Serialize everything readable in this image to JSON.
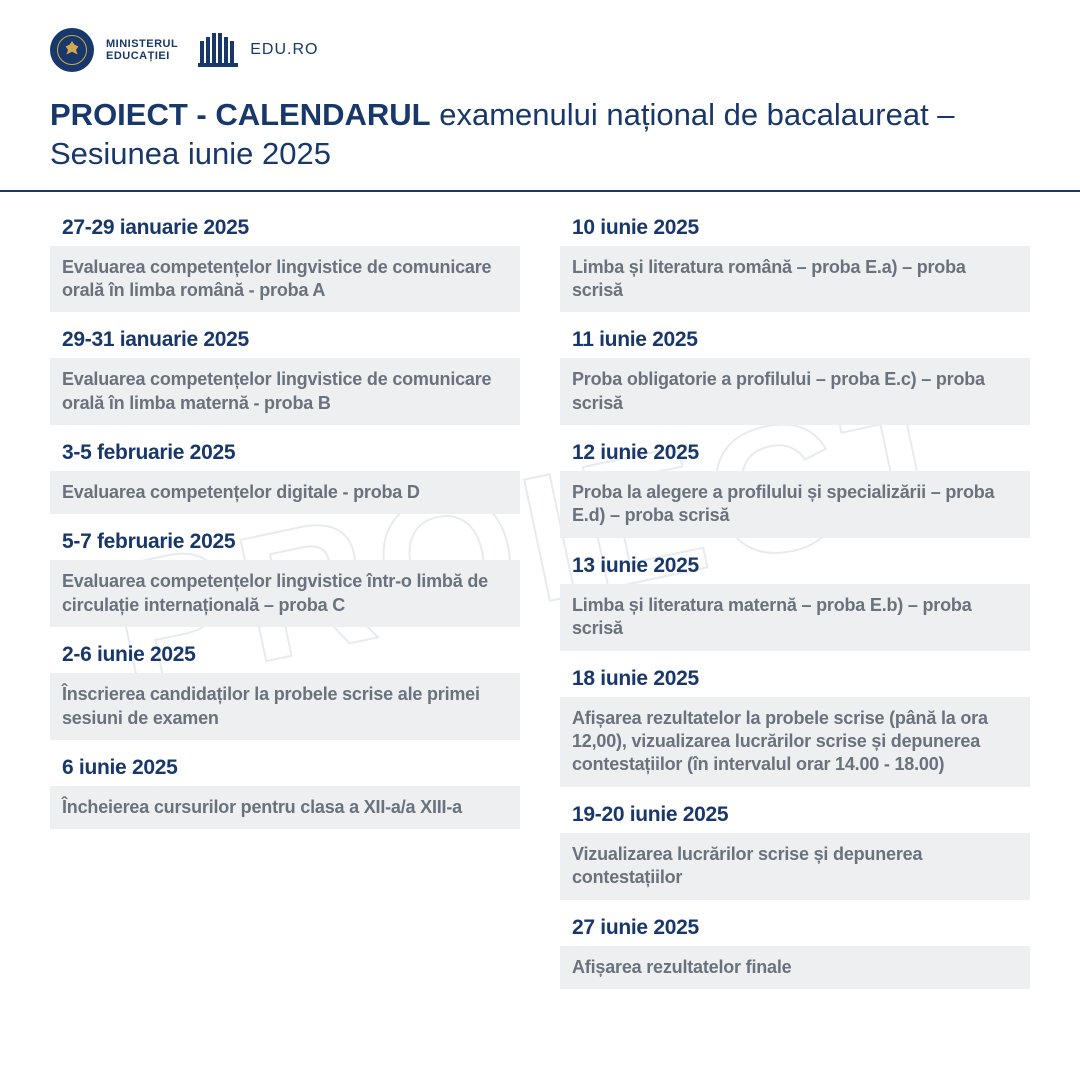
{
  "watermark": "PROIECT",
  "header": {
    "ministry_line1": "MINISTERUL",
    "ministry_line2": "EDUCAȚIEI",
    "site": "EDU.RO"
  },
  "title": {
    "bold": "PROIECT - CALENDARUL",
    "rest": " examenului național de bacalaureat – Sesiunea iunie 2025"
  },
  "colors": {
    "primary": "#18376a",
    "desc_bg": "#eeeff1",
    "desc_text": "#69727d",
    "seal_gold": "#d4a84a"
  },
  "left": [
    {
      "date": "27-29 ianuarie 2025",
      "desc": "Evaluarea competențelor lingvistice de comunicare orală în limba română - proba A"
    },
    {
      "date": "29-31 ianuarie 2025",
      "desc": "Evaluarea competențelor lingvistice de comunicare orală în limba maternă - proba B"
    },
    {
      "date": "3-5 februarie 2025",
      "desc": "Evaluarea competențelor digitale - proba D"
    },
    {
      "date": "5-7 februarie 2025",
      "desc": "Evaluarea competențelor lingvistice într-o limbă de circulație internațională – proba C"
    },
    {
      "date": "2-6 iunie 2025",
      "desc": "Înscrierea candidaților la probele scrise ale primei sesiuni de examen"
    },
    {
      "date": "6 iunie 2025",
      "desc": "Încheierea cursurilor pentru clasa a XII-a/a XIII-a"
    }
  ],
  "right": [
    {
      "date": "10 iunie 2025",
      "desc": "Limba și literatura română – proba E.a) – proba scrisă"
    },
    {
      "date": "11 iunie 2025",
      "desc": "Proba obligatorie a profilului – proba E.c) – proba scrisă"
    },
    {
      "date": "12 iunie 2025",
      "desc": "Proba la alegere a profilului și specializării – proba E.d) – proba scrisă"
    },
    {
      "date": "13 iunie 2025",
      "desc": "Limba și literatura maternă – proba E.b) – proba scrisă"
    },
    {
      "date": "18 iunie 2025",
      "desc": "Afișarea rezultatelor la probele scrise (până la ora 12,00), vizualizarea lucrărilor scrise și depunerea contestațiilor (în intervalul orar 14.00 - 18.00)"
    },
    {
      "date": "19-20 iunie 2025",
      "desc": "Vizualizarea lucrărilor scrise și depunerea contestațiilor"
    },
    {
      "date": "27 iunie 2025",
      "desc": "Afișarea rezultatelor finale"
    }
  ]
}
